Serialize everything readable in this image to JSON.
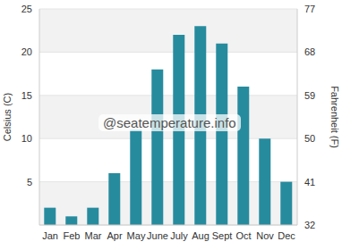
{
  "chart_data": {
    "type": "bar",
    "annotation": "@seatemperature.info",
    "y_label": "Celsius (C)",
    "y2_label": "Fahrenheit (F)",
    "categories": [
      "Jan",
      "Feb",
      "Mar",
      "Apr",
      "May",
      "June",
      "July",
      "Aug",
      "Sept",
      "Oct",
      "Nov",
      "Dec"
    ],
    "values": [
      2,
      1,
      2,
      6,
      11,
      18,
      22,
      23,
      21,
      16,
      10,
      5
    ],
    "color": "#278b9e",
    "ylim": [
      0,
      25
    ],
    "yticks": [
      5,
      10,
      15,
      20,
      25
    ],
    "y2lim": [
      32,
      77
    ],
    "y2ticks": [
      32,
      41,
      50,
      59,
      68,
      77
    ],
    "grid": true
  }
}
